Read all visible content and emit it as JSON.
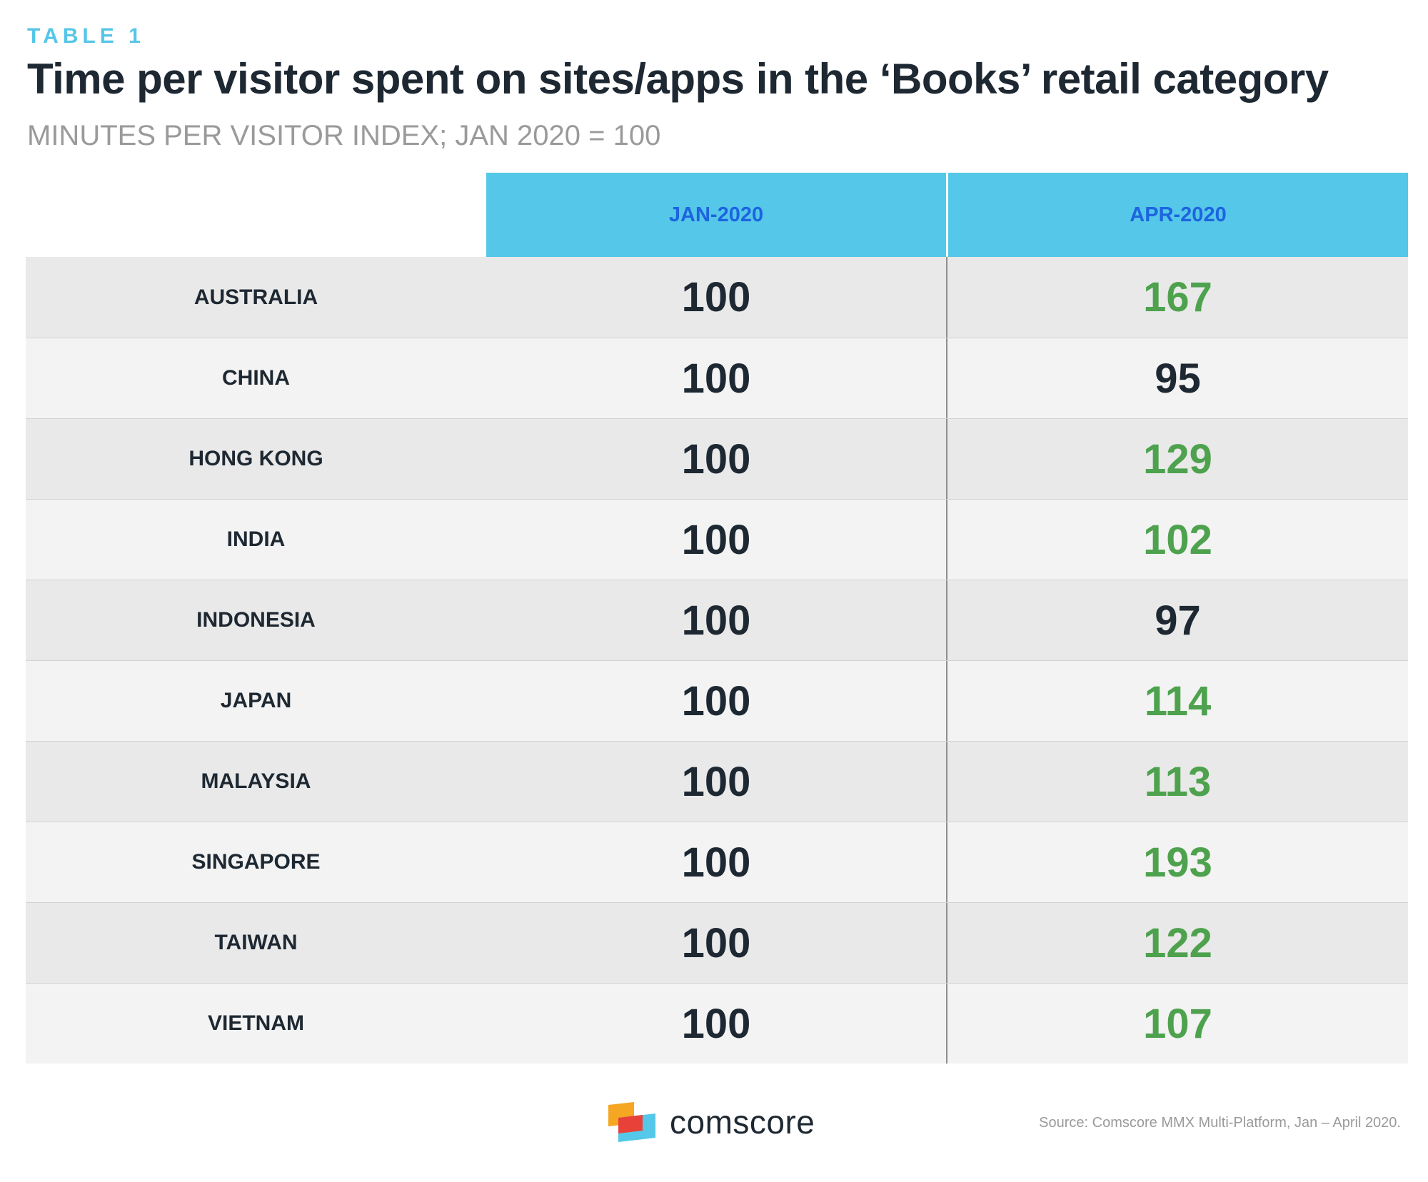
{
  "header": {
    "table_label": "TABLE 1",
    "title": "Time per visitor spent on sites/apps in the ‘Books’ retail category",
    "subtitle": "MINUTES PER VISITOR INDEX; JAN 2020 = 100"
  },
  "colors": {
    "header_bg": "#55c7e8",
    "header_text": "#1d64e0",
    "increase": "#4ea24e",
    "neutral": "#1e2832",
    "label_accent": "#55c6e8"
  },
  "chart_data": {
    "type": "table",
    "title": "Time per visitor spent on sites/apps in the ‘Books’ retail category",
    "subtitle": "MINUTES PER VISITOR INDEX; JAN 2020 = 100",
    "columns": [
      "JAN-2020",
      "APR-2020"
    ],
    "rows": [
      {
        "country": "AUSTRALIA",
        "jan": "100",
        "apr": "167",
        "increase": true
      },
      {
        "country": "CHINA",
        "jan": "100",
        "apr": "95",
        "increase": false
      },
      {
        "country": "HONG KONG",
        "jan": "100",
        "apr": "129",
        "increase": true
      },
      {
        "country": "INDIA",
        "jan": "100",
        "apr": "102",
        "increase": true
      },
      {
        "country": "INDONESIA",
        "jan": "100",
        "apr": "97",
        "increase": false
      },
      {
        "country": "JAPAN",
        "jan": "100",
        "apr": "114",
        "increase": true
      },
      {
        "country": "MALAYSIA",
        "jan": "100",
        "apr": "113",
        "increase": true
      },
      {
        "country": "SINGAPORE",
        "jan": "100",
        "apr": "193",
        "increase": true
      },
      {
        "country": "TAIWAN",
        "jan": "100",
        "apr": "122",
        "increase": true
      },
      {
        "country": "VIETNAM",
        "jan": "100",
        "apr": "107",
        "increase": true
      }
    ]
  },
  "footer": {
    "logo_text": "comscore",
    "logo_icon": "comscore-logo-icon",
    "source": "Source: Comscore MMX Multi-Platform, Jan – April 2020."
  }
}
